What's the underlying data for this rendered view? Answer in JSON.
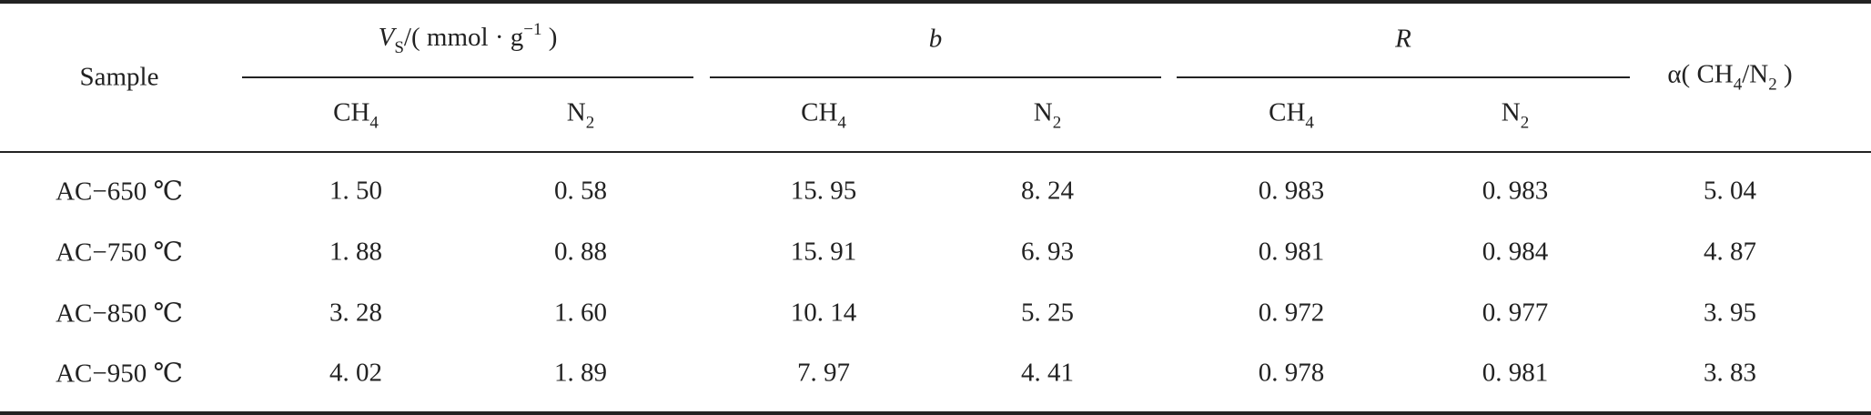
{
  "header": {
    "sample": "Sample",
    "groups": [
      {
        "parts": [
          {
            "text": "V",
            "style": "italic"
          },
          {
            "text": "S",
            "style": "sub"
          },
          {
            "text": "/( mmol · g",
            "style": "normal"
          },
          {
            "text": "−1",
            "style": "sup"
          },
          {
            "text": " )",
            "style": "normal"
          }
        ]
      },
      {
        "parts": [
          {
            "text": "b",
            "style": "italic"
          }
        ]
      },
      {
        "parts": [
          {
            "text": "R",
            "style": "italic"
          }
        ]
      }
    ],
    "columns": [
      {
        "parts": [
          {
            "text": "CH",
            "style": "normal"
          },
          {
            "text": "4",
            "style": "sub"
          }
        ]
      },
      {
        "parts": [
          {
            "text": "N",
            "style": "normal"
          },
          {
            "text": "2",
            "style": "sub"
          }
        ]
      },
      {
        "parts": [
          {
            "text": "CH",
            "style": "normal"
          },
          {
            "text": "4",
            "style": "sub"
          }
        ]
      },
      {
        "parts": [
          {
            "text": "N",
            "style": "normal"
          },
          {
            "text": "2",
            "style": "sub"
          }
        ]
      },
      {
        "parts": [
          {
            "text": "CH",
            "style": "normal"
          },
          {
            "text": "4",
            "style": "sub"
          }
        ]
      },
      {
        "parts": [
          {
            "text": "N",
            "style": "normal"
          },
          {
            "text": "2",
            "style": "sub"
          }
        ]
      }
    ],
    "alpha": {
      "parts": [
        {
          "text": "α( CH",
          "style": "normal"
        },
        {
          "text": "4",
          "style": "sub"
        },
        {
          "text": "/N",
          "style": "normal"
        },
        {
          "text": "2",
          "style": "sub"
        },
        {
          "text": " )",
          "style": "normal"
        }
      ]
    }
  },
  "table": {
    "rows": [
      [
        "AC−650 ℃",
        "1. 50",
        "0. 58",
        "15. 95",
        "8. 24",
        "0. 983",
        "0. 983",
        "5. 04"
      ],
      [
        "AC−750 ℃",
        "1. 88",
        "0. 88",
        "15. 91",
        "6. 93",
        "0. 981",
        "0. 984",
        "4. 87"
      ],
      [
        "AC−850 ℃",
        "3. 28",
        "1. 60",
        "10. 14",
        "5. 25",
        "0. 972",
        "0. 977",
        "3. 95"
      ],
      [
        "AC−950 ℃",
        "4. 02",
        "1. 89",
        "7. 97",
        "4. 41",
        "0. 978",
        "0. 981",
        "3. 83"
      ]
    ]
  }
}
